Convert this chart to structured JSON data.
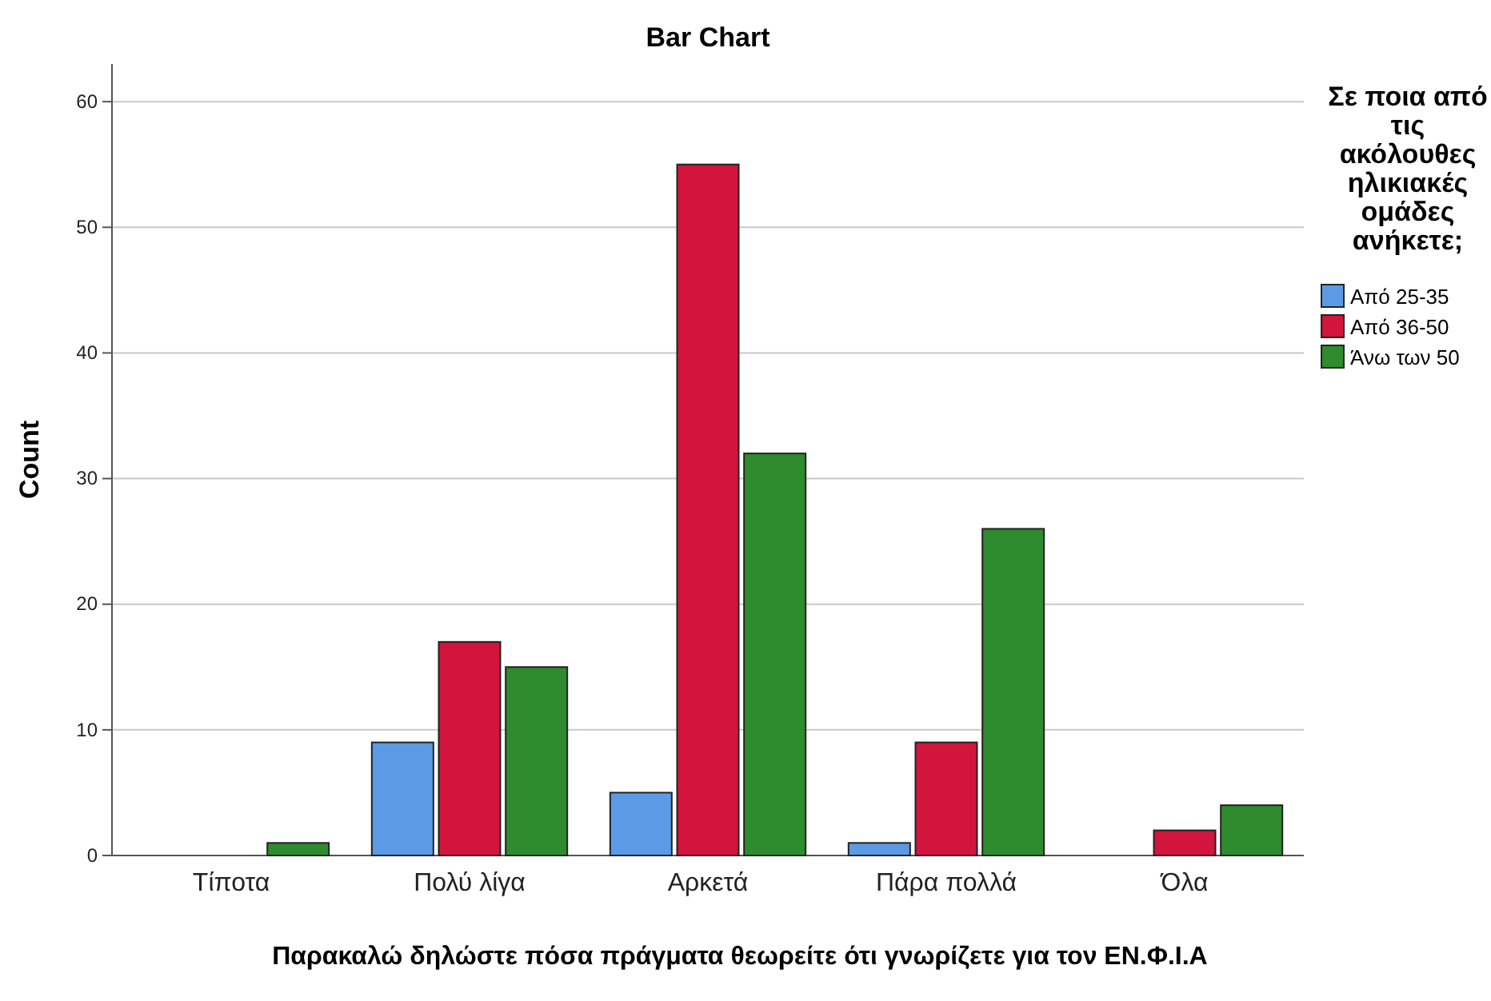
{
  "chart_data": {
    "type": "bar",
    "title": "Bar Chart",
    "xlabel": "Παρακαλώ δηλώστε πόσα πράγματα θεωρείτε ότι γνωρίζετε για τον ΕΝ.Φ.Ι.Α",
    "ylabel": "Count",
    "legend_title": "Σε ποια από τις ακόλουθες ηλικιακές ομάδες ανήκετε;",
    "categories": [
      "Τίποτα",
      "Πολύ λίγα",
      "Αρκετά",
      "Πάρα πολλά",
      "Όλα"
    ],
    "series": [
      {
        "name": "Από 25-35",
        "color": "#5b9be6",
        "values": [
          null,
          9,
          5,
          1,
          null
        ]
      },
      {
        "name": "Από 36-50",
        "color": "#d3143c",
        "values": [
          null,
          17,
          55,
          9,
          2
        ]
      },
      {
        "name": "Άνω των 50",
        "color": "#2e8b2e",
        "values": [
          1,
          15,
          32,
          26,
          4
        ]
      }
    ],
    "ylim": [
      0,
      63
    ],
    "yticks": [
      0,
      10,
      20,
      30,
      40,
      50,
      60
    ],
    "grid": "y",
    "legend": "right"
  }
}
